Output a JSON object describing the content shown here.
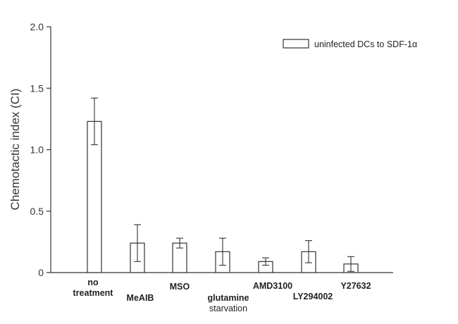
{
  "chart_data": {
    "type": "bar",
    "title": "",
    "xlabel": "",
    "ylabel": "Chemotactic index (CI)",
    "ylim": [
      0,
      2.0
    ],
    "yticks": [
      "0",
      "0.5",
      "1.0",
      "1.5",
      "2.0"
    ],
    "ytick_values": [
      0,
      0.5,
      1.0,
      1.5,
      2.0
    ],
    "categories": [
      [
        "no",
        "treatment"
      ],
      [
        "MeAIB"
      ],
      [
        "MSO"
      ],
      [
        "glutamine",
        "starvation"
      ],
      [
        "AMD3100"
      ],
      [
        "LY294002"
      ],
      [
        "Y27632"
      ]
    ],
    "series": [
      {
        "name": "uninfected DCs to SDF-1α",
        "values": [
          1.23,
          0.24,
          0.24,
          0.17,
          0.09,
          0.17,
          0.07
        ],
        "errors": [
          0.19,
          0.15,
          0.04,
          0.11,
          0.03,
          0.09,
          0.06
        ],
        "color": "#ffffff"
      }
    ],
    "legend_position": "top-right",
    "grid": false
  }
}
